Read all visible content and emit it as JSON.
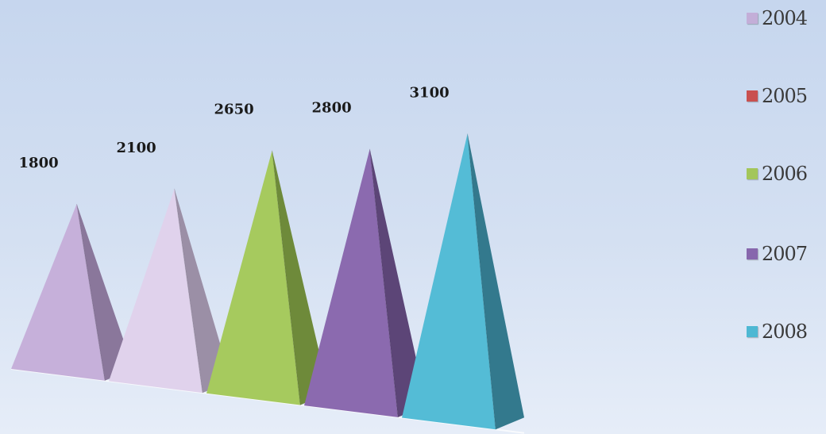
{
  "chart_data": {
    "type": "bar",
    "subtype": "3d-pyramid",
    "categories": [
      "2004",
      "2005",
      "2006",
      "2007",
      "2008"
    ],
    "values": [
      1800,
      2100,
      2650,
      2800,
      3100
    ],
    "data_labels": [
      "1800",
      "2100",
      "2650",
      "2800",
      "3100"
    ],
    "title": "",
    "xlabel": "",
    "ylabel": "",
    "grid": false,
    "legend_position": "right",
    "legend": [
      {
        "label": "2004",
        "color": "#c3aed8"
      },
      {
        "label": "2005",
        "color": "#c9504f"
      },
      {
        "label": "2006",
        "color": "#a3c65a"
      },
      {
        "label": "2007",
        "color": "#8767ad"
      },
      {
        "label": "2008",
        "color": "#4eb8d3"
      }
    ],
    "pyramid_colors": [
      {
        "front": "#c6b0da",
        "side": "#8a779b"
      },
      {
        "front": "#e0d2ec",
        "side": "#9b8fa6"
      },
      {
        "front": "#a6ca5e",
        "side": "#6e8a3a"
      },
      {
        "front": "#8b6aaf",
        "side": "#5c4577"
      },
      {
        "front": "#54bcd6",
        "side": "#33798d"
      }
    ]
  }
}
